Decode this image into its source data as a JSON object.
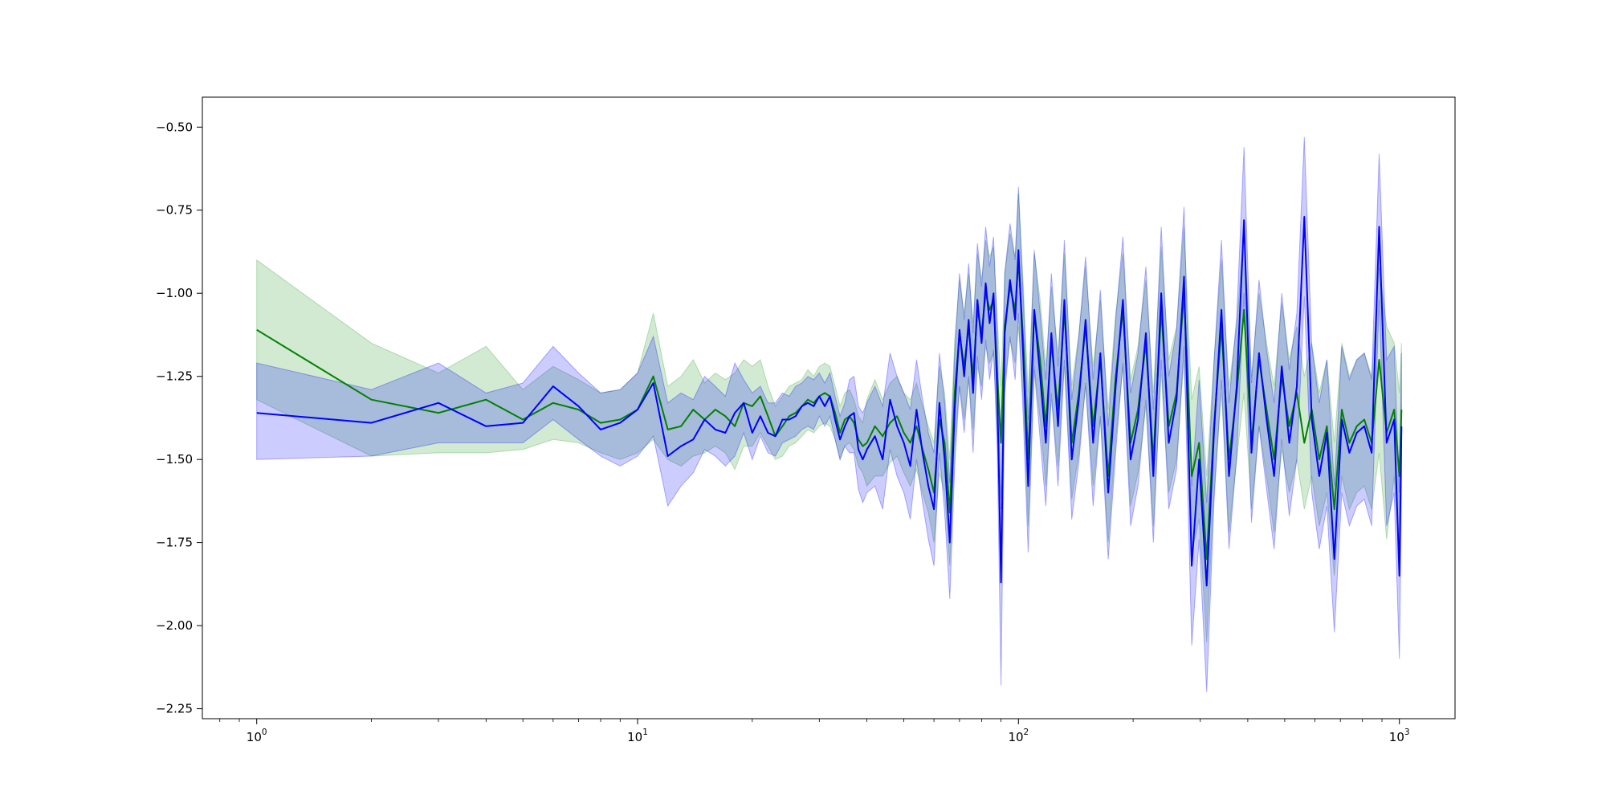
{
  "chart_data": {
    "type": "line",
    "xscale": "log",
    "xlim": [
      0.72,
      1400
    ],
    "ylim": [
      -2.28,
      -0.41
    ],
    "grid": false,
    "legend": "none",
    "title": "",
    "xlabel": "",
    "ylabel": "",
    "x_ticks": [
      {
        "value": 1,
        "base": "10",
        "exp": "0"
      },
      {
        "value": 10,
        "base": "10",
        "exp": "1"
      },
      {
        "value": 100,
        "base": "10",
        "exp": "2"
      },
      {
        "value": 1000,
        "base": "10",
        "exp": "3"
      }
    ],
    "y_ticks": [
      {
        "value": -0.5,
        "label": "−0.50"
      },
      {
        "value": -0.75,
        "label": "−0.75"
      },
      {
        "value": -1.0,
        "label": "−1.00"
      },
      {
        "value": -1.25,
        "label": "−1.25"
      },
      {
        "value": -1.5,
        "label": "−1.50"
      },
      {
        "value": -1.75,
        "label": "−1.75"
      },
      {
        "value": -2.0,
        "label": "−2.00"
      },
      {
        "value": -2.25,
        "label": "−2.25"
      }
    ],
    "series": [
      {
        "color": "#008000",
        "band_color": "#2ca02c",
        "band_opacity": 0.22,
        "x": [
          1,
          2,
          3,
          4,
          5,
          6,
          7,
          8,
          9,
          10,
          11,
          12,
          13,
          14,
          15,
          16,
          17,
          18,
          19,
          20,
          21,
          22,
          23,
          24,
          25,
          26,
          27,
          28,
          29,
          30,
          31,
          32,
          33,
          34,
          35,
          36,
          37,
          38,
          39,
          40,
          42,
          44,
          46,
          48,
          50,
          52,
          54,
          56,
          58,
          60,
          62,
          64,
          66,
          68,
          70,
          72,
          74,
          76,
          78,
          80,
          82,
          84,
          86,
          88,
          90,
          92,
          95,
          98,
          100,
          103,
          106,
          110,
          114,
          118,
          122,
          127,
          132,
          138,
          144,
          150,
          157,
          164,
          172,
          180,
          188,
          197,
          206,
          216,
          226,
          237,
          248,
          260,
          272,
          285,
          298,
          312,
          326,
          341,
          357,
          374,
          391,
          409,
          428,
          448,
          469,
          491,
          514,
          538,
          563,
          589,
          616,
          645,
          675,
          706,
          739,
          773,
          809,
          846,
          885,
          926,
          969,
          1000,
          1013
        ],
        "mean": [
          -1.11,
          -1.32,
          -1.36,
          -1.32,
          -1.38,
          -1.33,
          -1.35,
          -1.39,
          -1.38,
          -1.35,
          -1.25,
          -1.41,
          -1.4,
          -1.35,
          -1.38,
          -1.35,
          -1.37,
          -1.4,
          -1.33,
          -1.34,
          -1.31,
          -1.37,
          -1.43,
          -1.4,
          -1.37,
          -1.36,
          -1.34,
          -1.32,
          -1.33,
          -1.31,
          -1.3,
          -1.31,
          -1.36,
          -1.42,
          -1.38,
          -1.37,
          -1.39,
          -1.44,
          -1.46,
          -1.45,
          -1.4,
          -1.43,
          -1.39,
          -1.37,
          -1.42,
          -1.45,
          -1.4,
          -1.47,
          -1.53,
          -1.6,
          -1.38,
          -1.45,
          -1.66,
          -1.3,
          -1.12,
          -1.22,
          -1.1,
          -1.25,
          -1.05,
          -1.12,
          -1.0,
          -1.05,
          -1.02,
          -1.25,
          -1.45,
          -1.1,
          -0.98,
          -1.05,
          -0.9,
          -1.15,
          -1.5,
          -1.05,
          -1.2,
          -1.4,
          -1.15,
          -1.35,
          -1.05,
          -1.45,
          -1.3,
          -1.1,
          -1.4,
          -1.2,
          -1.55,
          -1.25,
          -1.05,
          -1.45,
          -1.35,
          -1.15,
          -1.5,
          -1.05,
          -1.4,
          -1.3,
          -1.0,
          -1.55,
          -1.45,
          -1.8,
          -1.4,
          -1.1,
          -1.5,
          -1.3,
          -1.05,
          -1.45,
          -1.2,
          -1.35,
          -1.5,
          -1.25,
          -1.4,
          -1.3,
          -1.45,
          -1.35,
          -1.5,
          -1.4,
          -1.65,
          -1.35,
          -1.45,
          -1.4,
          -1.38,
          -1.45,
          -1.2,
          -1.42,
          -1.35,
          -1.55,
          -1.35
        ],
        "upper": [
          -0.9,
          -1.15,
          -1.24,
          -1.16,
          -1.29,
          -1.22,
          -1.26,
          -1.3,
          -1.29,
          -1.24,
          -1.06,
          -1.28,
          -1.25,
          -1.2,
          -1.27,
          -1.24,
          -1.26,
          -1.24,
          -1.2,
          -1.22,
          -1.2,
          -1.28,
          -1.34,
          -1.31,
          -1.28,
          -1.27,
          -1.26,
          -1.23,
          -1.25,
          -1.22,
          -1.21,
          -1.22,
          -1.28,
          -1.34,
          -1.3,
          -1.29,
          -1.32,
          -1.37,
          -1.39,
          -1.32,
          -1.26,
          -1.32,
          -1.27,
          -1.25,
          -1.3,
          -1.32,
          -1.27,
          -1.34,
          -1.4,
          -1.45,
          -1.22,
          -1.3,
          -1.5,
          -1.14,
          -0.96,
          -1.06,
          -0.94,
          -1.09,
          -0.88,
          -0.96,
          -0.84,
          -0.89,
          -0.86,
          -1.08,
          -1.28,
          -0.94,
          -0.82,
          -0.89,
          -0.7,
          -0.98,
          -1.3,
          -0.88,
          -1.02,
          -1.22,
          -0.98,
          -1.18,
          -0.88,
          -1.28,
          -1.12,
          -0.92,
          -1.22,
          -1.02,
          -1.35,
          -1.06,
          -0.88,
          -1.26,
          -1.16,
          -0.96,
          -1.3,
          -0.86,
          -1.2,
          -1.1,
          -0.8,
          -1.32,
          -1.22,
          -1.55,
          -1.2,
          -0.9,
          -1.28,
          -1.1,
          -0.8,
          -1.25,
          -1.0,
          -1.15,
          -1.28,
          -1.03,
          -1.2,
          -1.1,
          -1.25,
          -1.15,
          -1.3,
          -1.2,
          -1.45,
          -1.15,
          -1.25,
          -1.2,
          -1.18,
          -1.25,
          -0.92,
          -1.1,
          -1.15,
          -1.3,
          -1.15
        ],
        "lower": [
          -1.32,
          -1.49,
          -1.48,
          -1.48,
          -1.47,
          -1.44,
          -1.45,
          -1.48,
          -1.5,
          -1.48,
          -1.44,
          -1.5,
          -1.52,
          -1.49,
          -1.48,
          -1.46,
          -1.48,
          -1.53,
          -1.46,
          -1.46,
          -1.42,
          -1.46,
          -1.5,
          -1.49,
          -1.46,
          -1.45,
          -1.43,
          -1.41,
          -1.42,
          -1.4,
          -1.39,
          -1.4,
          -1.44,
          -1.5,
          -1.46,
          -1.45,
          -1.47,
          -1.52,
          -1.54,
          -1.58,
          -1.55,
          -1.55,
          -1.51,
          -1.49,
          -1.54,
          -1.58,
          -1.53,
          -1.6,
          -1.66,
          -1.75,
          -1.54,
          -1.6,
          -1.82,
          -1.46,
          -1.28,
          -1.38,
          -1.26,
          -1.41,
          -1.22,
          -1.28,
          -1.16,
          -1.21,
          -1.18,
          -1.42,
          -1.62,
          -1.26,
          -1.14,
          -1.21,
          -1.1,
          -1.32,
          -1.7,
          -1.22,
          -1.38,
          -1.58,
          -1.32,
          -1.52,
          -1.22,
          -1.62,
          -1.48,
          -1.28,
          -1.58,
          -1.38,
          -1.75,
          -1.44,
          -1.22,
          -1.64,
          -1.54,
          -1.34,
          -1.7,
          -1.24,
          -1.6,
          -1.5,
          -1.2,
          -1.78,
          -1.68,
          -2.05,
          -1.6,
          -1.3,
          -1.72,
          -1.5,
          -1.3,
          -1.65,
          -1.4,
          -1.55,
          -1.72,
          -1.47,
          -1.6,
          -1.5,
          -1.65,
          -1.55,
          -1.7,
          -1.6,
          -1.85,
          -1.55,
          -1.65,
          -1.6,
          -1.58,
          -1.65,
          -1.48,
          -1.74,
          -1.55,
          -1.8,
          -1.55
        ]
      },
      {
        "color": "#0000ff",
        "band_color": "#0000ff",
        "band_opacity": 0.2,
        "x": [
          1,
          2,
          3,
          4,
          5,
          6,
          7,
          8,
          9,
          10,
          11,
          12,
          13,
          14,
          15,
          16,
          17,
          18,
          19,
          20,
          21,
          22,
          23,
          24,
          25,
          26,
          27,
          28,
          29,
          30,
          31,
          32,
          33,
          34,
          35,
          36,
          37,
          38,
          39,
          40,
          42,
          44,
          46,
          48,
          50,
          52,
          54,
          56,
          58,
          60,
          62,
          64,
          66,
          68,
          70,
          72,
          74,
          76,
          78,
          80,
          82,
          84,
          86,
          88,
          90,
          92,
          95,
          98,
          100,
          103,
          106,
          110,
          114,
          118,
          122,
          127,
          132,
          138,
          144,
          150,
          157,
          164,
          172,
          180,
          188,
          197,
          206,
          216,
          226,
          237,
          248,
          260,
          272,
          285,
          298,
          312,
          326,
          341,
          357,
          374,
          391,
          409,
          428,
          448,
          469,
          491,
          514,
          538,
          563,
          589,
          616,
          645,
          675,
          706,
          739,
          773,
          809,
          846,
          885,
          926,
          969,
          1000,
          1013
        ],
        "mean": [
          -1.36,
          -1.39,
          -1.33,
          -1.4,
          -1.39,
          -1.28,
          -1.34,
          -1.41,
          -1.39,
          -1.35,
          -1.27,
          -1.49,
          -1.46,
          -1.44,
          -1.38,
          -1.41,
          -1.42,
          -1.36,
          -1.33,
          -1.42,
          -1.37,
          -1.42,
          -1.43,
          -1.38,
          -1.38,
          -1.37,
          -1.34,
          -1.33,
          -1.34,
          -1.31,
          -1.34,
          -1.31,
          -1.38,
          -1.44,
          -1.4,
          -1.37,
          -1.36,
          -1.47,
          -1.5,
          -1.47,
          -1.43,
          -1.5,
          -1.32,
          -1.4,
          -1.45,
          -1.52,
          -1.35,
          -1.48,
          -1.58,
          -1.65,
          -1.33,
          -1.5,
          -1.75,
          -1.35,
          -1.11,
          -1.25,
          -1.08,
          -1.3,
          -1.02,
          -1.15,
          -0.97,
          -1.09,
          -1.0,
          -1.3,
          -1.87,
          -1.12,
          -0.96,
          -1.08,
          -0.87,
          -1.2,
          -1.58,
          -1.05,
          -1.25,
          -1.45,
          -1.12,
          -1.4,
          -1.02,
          -1.5,
          -1.32,
          -1.08,
          -1.45,
          -1.18,
          -1.6,
          -1.28,
          -1.02,
          -1.5,
          -1.38,
          -1.12,
          -1.55,
          -1.0,
          -1.45,
          -1.32,
          -0.95,
          -1.82,
          -1.5,
          -1.88,
          -1.42,
          -1.05,
          -1.55,
          -1.28,
          -0.78,
          -1.48,
          -1.18,
          -1.38,
          -1.55,
          -1.22,
          -1.45,
          -1.28,
          -0.77,
          -1.38,
          -1.55,
          -1.42,
          -1.8,
          -1.38,
          -1.48,
          -1.42,
          -1.4,
          -1.48,
          -0.8,
          -1.45,
          -1.38,
          -1.85,
          -1.4
        ],
        "upper": [
          -1.21,
          -1.29,
          -1.21,
          -1.3,
          -1.27,
          -1.16,
          -1.24,
          -1.3,
          -1.29,
          -1.24,
          -1.13,
          -1.33,
          -1.3,
          -1.32,
          -1.25,
          -1.28,
          -1.31,
          -1.21,
          -1.26,
          -1.3,
          -1.28,
          -1.33,
          -1.33,
          -1.3,
          -1.31,
          -1.28,
          -1.27,
          -1.25,
          -1.26,
          -1.24,
          -1.27,
          -1.24,
          -1.31,
          -1.37,
          -1.33,
          -1.26,
          -1.25,
          -1.34,
          -1.36,
          -1.33,
          -1.28,
          -1.34,
          -1.18,
          -1.25,
          -1.3,
          -1.35,
          -1.2,
          -1.32,
          -1.42,
          -1.48,
          -1.18,
          -1.33,
          -1.57,
          -1.18,
          -0.94,
          -1.08,
          -0.91,
          -1.12,
          -0.85,
          -0.98,
          -0.8,
          -0.92,
          -0.83,
          -1.12,
          -1.65,
          -0.94,
          -0.79,
          -0.9,
          -0.68,
          -1.02,
          -1.38,
          -0.87,
          -1.06,
          -1.26,
          -0.94,
          -1.22,
          -0.84,
          -1.32,
          -1.13,
          -0.89,
          -1.26,
          -0.99,
          -1.4,
          -1.08,
          -0.83,
          -1.3,
          -1.18,
          -0.92,
          -1.35,
          -0.8,
          -1.25,
          -1.11,
          -0.74,
          -1.58,
          -1.26,
          -1.63,
          -1.21,
          -0.84,
          -1.33,
          -1.07,
          -0.56,
          -1.27,
          -0.96,
          -1.17,
          -1.33,
          -1.0,
          -1.23,
          -1.06,
          -0.53,
          -1.16,
          -1.33,
          -1.2,
          -1.58,
          -1.16,
          -1.26,
          -1.2,
          -1.18,
          -1.26,
          -0.58,
          -1.2,
          -1.16,
          -1.6,
          -1.18
        ],
        "lower": [
          -1.5,
          -1.49,
          -1.45,
          -1.45,
          -1.45,
          -1.38,
          -1.44,
          -1.49,
          -1.52,
          -1.49,
          -1.43,
          -1.64,
          -1.58,
          -1.54,
          -1.47,
          -1.49,
          -1.52,
          -1.49,
          -1.42,
          -1.5,
          -1.43,
          -1.48,
          -1.49,
          -1.45,
          -1.44,
          -1.43,
          -1.41,
          -1.4,
          -1.41,
          -1.37,
          -1.4,
          -1.37,
          -1.44,
          -1.5,
          -1.46,
          -1.48,
          -1.48,
          -1.59,
          -1.63,
          -1.6,
          -1.58,
          -1.65,
          -1.47,
          -1.55,
          -1.6,
          -1.68,
          -1.5,
          -1.63,
          -1.74,
          -1.82,
          -1.48,
          -1.66,
          -1.92,
          -1.52,
          -1.28,
          -1.42,
          -1.25,
          -1.48,
          -1.19,
          -1.32,
          -1.14,
          -1.26,
          -1.17,
          -1.48,
          -2.18,
          -1.3,
          -1.13,
          -1.26,
          -1.06,
          -1.38,
          -1.78,
          -1.23,
          -1.44,
          -1.64,
          -1.3,
          -1.58,
          -1.2,
          -1.68,
          -1.51,
          -1.27,
          -1.64,
          -1.37,
          -1.8,
          -1.48,
          -1.21,
          -1.7,
          -1.58,
          -1.32,
          -1.75,
          -1.2,
          -1.65,
          -1.53,
          -1.16,
          -2.06,
          -1.74,
          -2.2,
          -1.63,
          -1.26,
          -1.77,
          -1.49,
          -1.0,
          -1.69,
          -1.4,
          -1.59,
          -1.77,
          -1.44,
          -1.67,
          -1.5,
          -1.01,
          -1.6,
          -1.77,
          -1.64,
          -2.02,
          -1.6,
          -1.7,
          -1.64,
          -1.62,
          -1.7,
          -1.02,
          -1.7,
          -1.6,
          -2.1,
          -1.62
        ]
      }
    ]
  }
}
